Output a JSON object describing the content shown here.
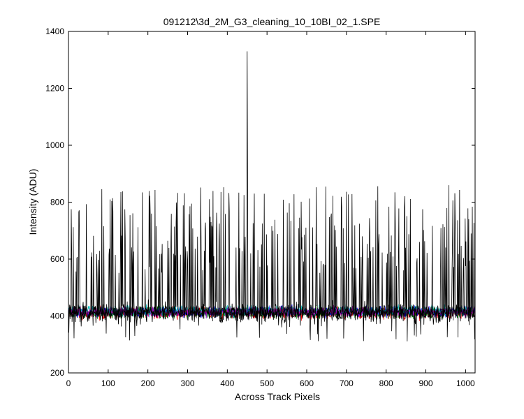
{
  "chart_data": {
    "type": "line",
    "title": "091212\\3d_2M_G3_cleaning_10_10BI_02_1.SPE",
    "xlabel": "Across Track Pixels",
    "ylabel": "Intensity (ADU)",
    "xlim": [
      0,
      1024
    ],
    "ylim": [
      200,
      1400
    ],
    "xticks": [
      0,
      100,
      200,
      300,
      400,
      500,
      600,
      700,
      800,
      900,
      1000
    ],
    "yticks": [
      200,
      400,
      600,
      800,
      1000,
      1200,
      1400
    ],
    "grid": false,
    "legend": "none",
    "n_points_per_series": 1024,
    "series": [
      {
        "color": "#000000",
        "baseline": 410,
        "noise": 25,
        "spike_prob": 0.22,
        "spike_range": [
          550,
          860
        ],
        "peaks": [
          {
            "x": 450,
            "y": 1330
          },
          {
            "x": 451,
            "y": 905
          }
        ]
      },
      {
        "color": "#ff0000",
        "baseline": 410,
        "noise": 14
      },
      {
        "color": "#008000",
        "baseline": 412,
        "noise": 14
      },
      {
        "color": "#0000ff",
        "baseline": 415,
        "noise": 14
      },
      {
        "color": "#00bfbf",
        "baseline": 418,
        "noise": 14
      },
      {
        "color": "#bf00bf",
        "baseline": 414,
        "noise": 12
      },
      {
        "color": "#000000",
        "baseline": 412,
        "noise": 16
      }
    ]
  }
}
